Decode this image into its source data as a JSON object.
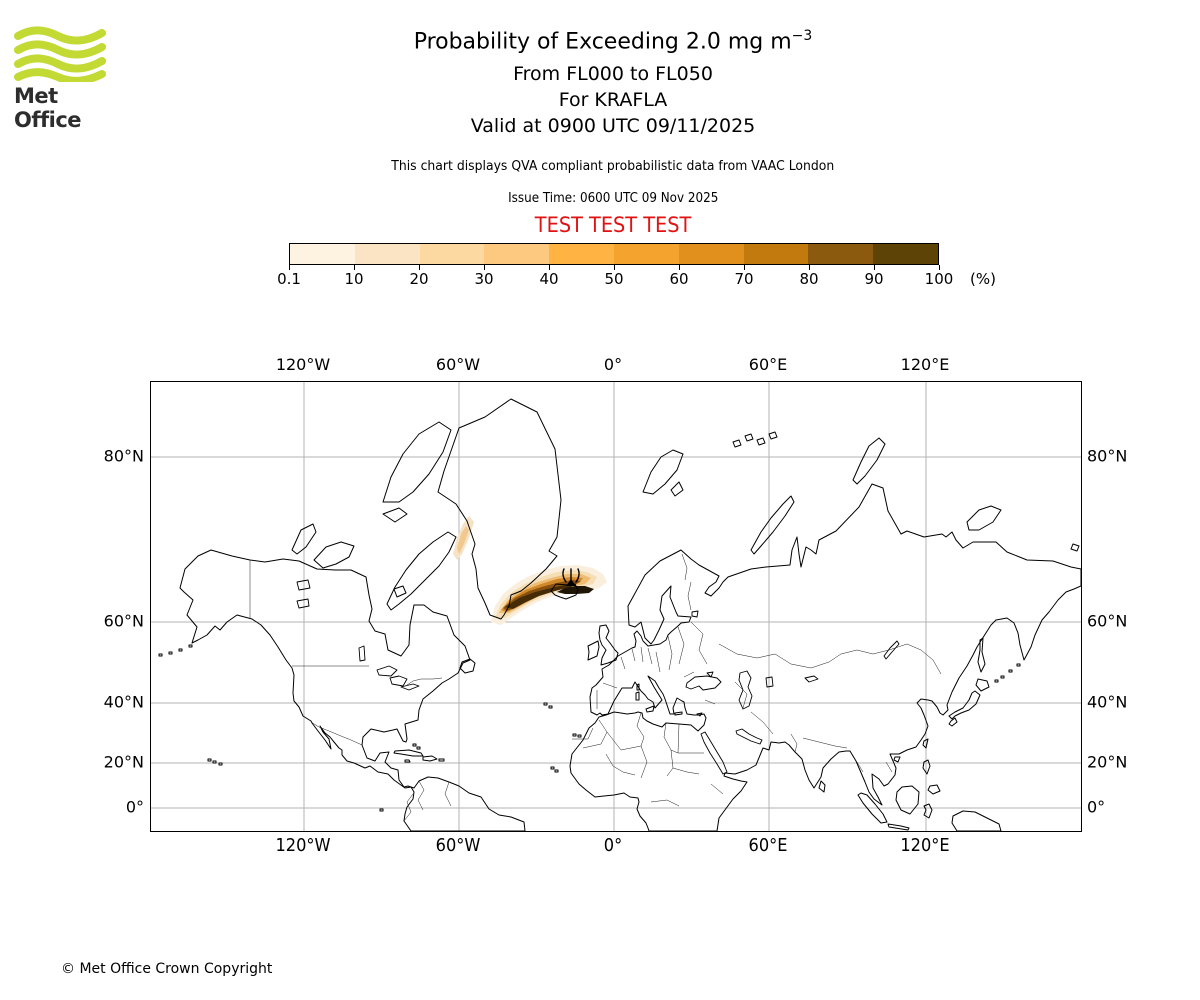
{
  "brand": {
    "name": "Met Office"
  },
  "header": {
    "title": "Probability of Exceeding 2.0 mg m",
    "title_superscript": "−3",
    "line2": "From FL000 to FL050",
    "line3": "For KRAFLA",
    "line4": "Valid at 0900 UTC 09/11/2025",
    "description": "This chart displays QVA compliant probabilistic data from VAAC London",
    "issue_time": "Issue Time: 0600 UTC 09 Nov 2025",
    "test_banner": "TEST TEST TEST",
    "test_banner_color": "#e01212"
  },
  "colorbar": {
    "tick_labels": [
      "0.1",
      "10",
      "20",
      "30",
      "40",
      "50",
      "60",
      "70",
      "80",
      "90",
      "100"
    ],
    "unit": "(%)",
    "colors": [
      "#fdf3e0",
      "#fae4c3",
      "#fbd9a1",
      "#fdc87f",
      "#feb342",
      "#f4a32e",
      "#e1901e",
      "#c2790e",
      "#8c5a0e",
      "#5e4307"
    ]
  },
  "map": {
    "lon_labels": [
      "120°W",
      "60°W",
      "0°",
      "60°E",
      "120°E"
    ],
    "lat_labels": [
      "80°N",
      "60°N",
      "40°N",
      "20°N",
      "0°"
    ],
    "volcano_marker": "eruption-symbol",
    "plume_layer_colors": [
      "#faeedd",
      "#f5ddb4",
      "#eebc72",
      "#d0882a",
      "#8a5210",
      "#462c06",
      "#1f1504"
    ]
  },
  "footer": {
    "copyright": "© Met Office Crown Copyright"
  }
}
